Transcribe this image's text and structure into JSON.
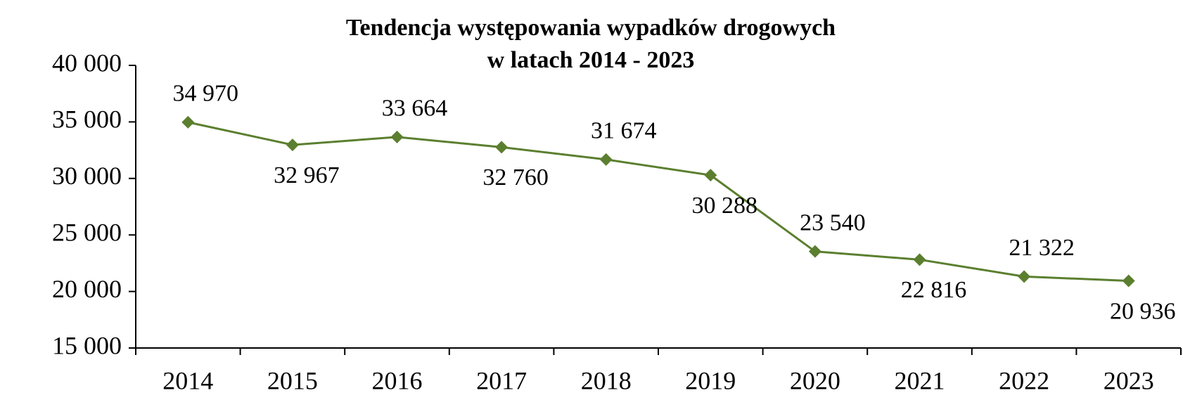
{
  "chart_data": {
    "type": "line",
    "title": [
      "Tendencja występowania wypadków drogowych",
      "w latach 2014 - 2023"
    ],
    "categories": [
      "2014",
      "2015",
      "2016",
      "2017",
      "2018",
      "2019",
      "2020",
      "2021",
      "2022",
      "2023"
    ],
    "series": [
      {
        "color": "#5b7f2f",
        "values": [
          34970,
          32967,
          33664,
          32760,
          31674,
          30288,
          23540,
          22816,
          21322,
          20936
        ],
        "value_labels": [
          "34 970",
          "32 967",
          "33 664",
          "32 760",
          "31 674",
          "30 288",
          "23 540",
          "22 816",
          "21 322",
          "20 936"
        ]
      }
    ],
    "ylim": [
      15000,
      40000
    ],
    "yticks": [
      {
        "value": 15000,
        "label": "15 000"
      },
      {
        "value": 20000,
        "label": "20 000"
      },
      {
        "value": 25000,
        "label": "25 000"
      },
      {
        "value": 30000,
        "label": "30 000"
      },
      {
        "value": 35000,
        "label": "35 000"
      },
      {
        "value": 40000,
        "label": "40 000"
      }
    ],
    "grid": false
  }
}
